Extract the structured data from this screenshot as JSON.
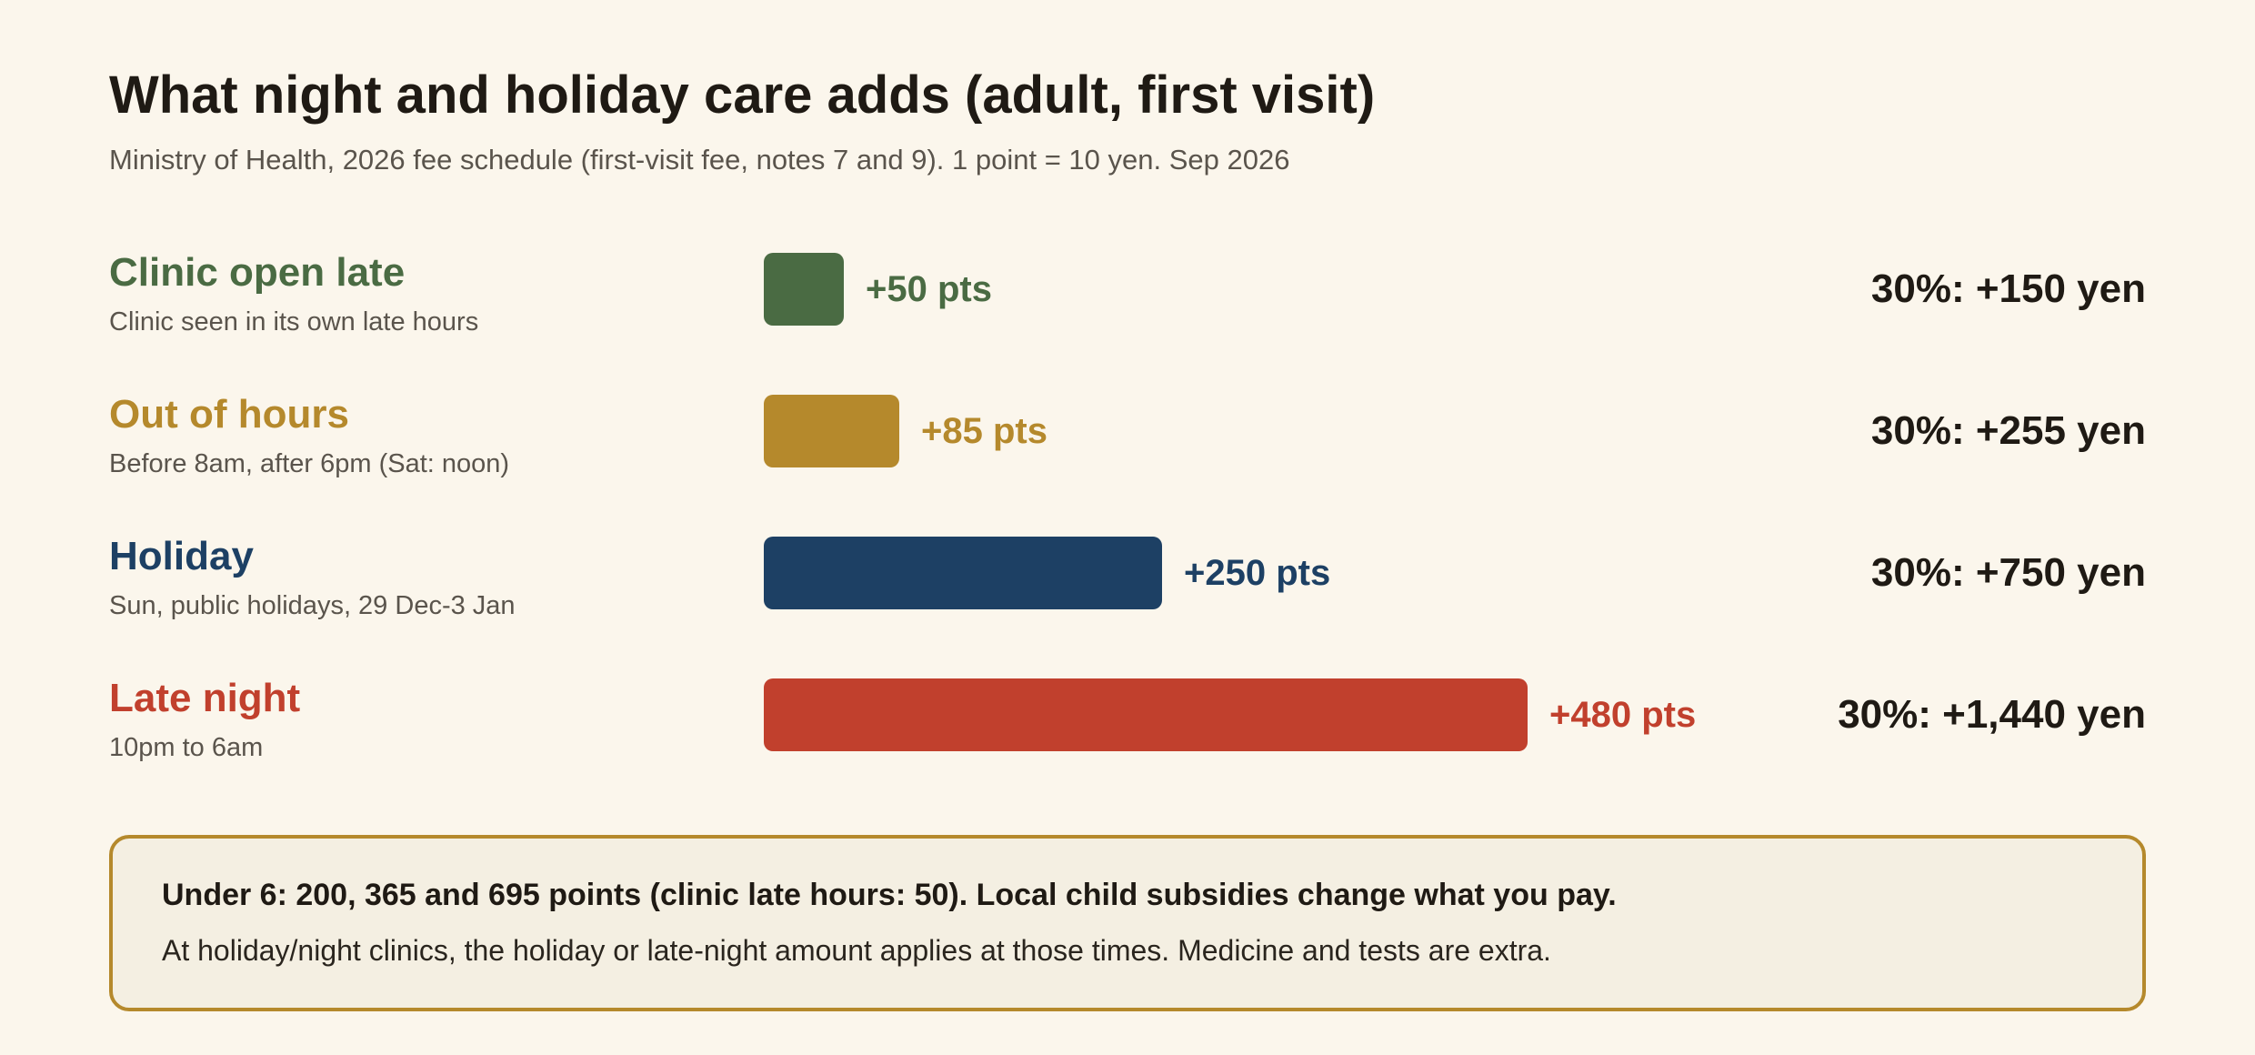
{
  "header": {
    "title": "What night and holiday care adds (adult, first visit)",
    "subtitle": "Ministry of Health, 2026 fee schedule (first-visit fee, notes 7 and 9). 1 point = 10 yen. Sep 2026"
  },
  "chart_data": {
    "type": "bar",
    "orientation": "horizontal",
    "title": "What night and holiday care adds (adult, first visit)",
    "subtitle": "Ministry of Health, 2026 fee schedule (first-visit fee, notes 7 and 9). 1 point = 10 yen. Sep 2026",
    "unit": "pts",
    "xlim": [
      0,
      480
    ],
    "grid": false,
    "categories": [
      "Clinic open late",
      "Out of hours",
      "Holiday",
      "Late night"
    ],
    "values": [
      50,
      85,
      250,
      480
    ],
    "rows": [
      {
        "label": "Clinic open late",
        "description": "Clinic seen in its own late hours",
        "value": 50,
        "value_label": "+50 pts",
        "cost_label": "30%: +150 yen",
        "color": "#4a6b43"
      },
      {
        "label": "Out of hours",
        "description": "Before 8am, after 6pm (Sat: noon)",
        "value": 85,
        "value_label": "+85 pts",
        "cost_label": "30%: +255 yen",
        "color": "#b5892c"
      },
      {
        "label": "Holiday",
        "description": "Sun, public holidays, 29 Dec-3 Jan",
        "value": 250,
        "value_label": "+250 pts",
        "cost_label": "30%: +750 yen",
        "color": "#1d4064"
      },
      {
        "label": "Late night",
        "description": "10pm to 6am",
        "value": 480,
        "value_label": "+480 pts",
        "cost_label": "30%: +1,440 yen",
        "color": "#c1402d"
      }
    ]
  },
  "note": {
    "strong": "Under 6: 200, 365 and 695 points (clinic late hours: 50). Local child subsidies change what you pay.",
    "body": "At holiday/night clinics, the holiday or late-night amount applies at those times. Medicine and tests are extra."
  },
  "colors": {
    "background": "#fbf6ec",
    "text": "#1f1a14",
    "muted": "#5a544c",
    "note_background": "#f4efe2",
    "note_border": "#b5892c"
  }
}
